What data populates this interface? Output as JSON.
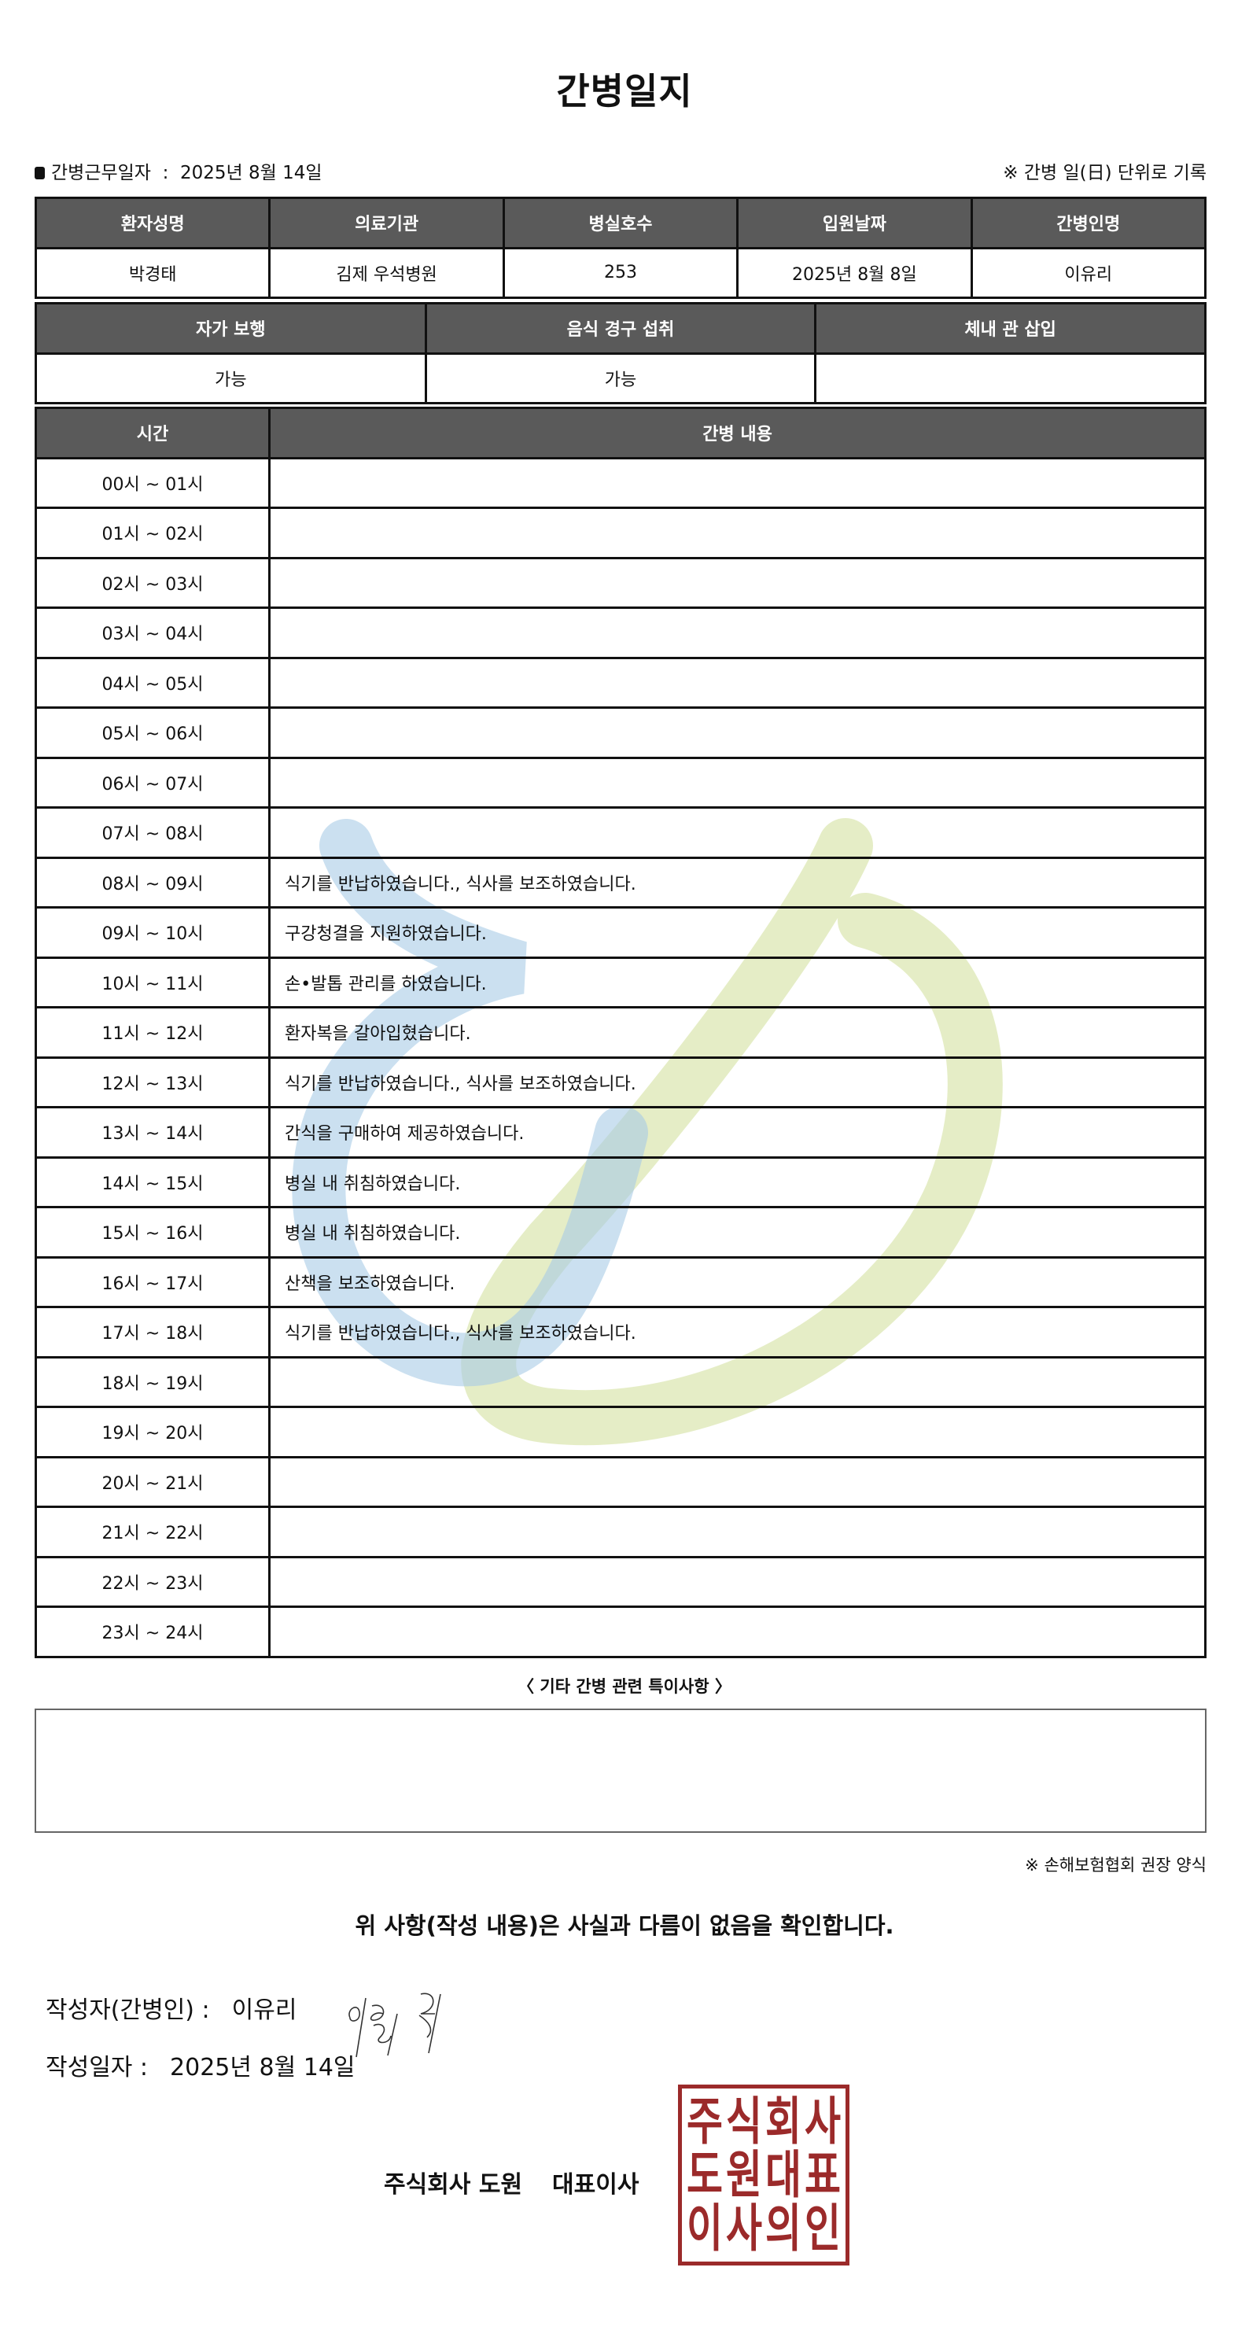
{
  "title": "간병일지",
  "work_date_label": "간병근무일자",
  "work_date": "2025년 8월 14일",
  "record_note": "※ 간병 일(日) 단위로 기록",
  "patient_table": {
    "headers": [
      "환자성명",
      "의료기관",
      "병실호수",
      "입원날짜",
      "간병인명"
    ],
    "values": [
      "박경태",
      "김제 우석병원",
      "253",
      "2025년 8월 8일",
      "이유리"
    ]
  },
  "status_table": {
    "headers": [
      "자가 보행",
      "음식 경구 섭취",
      "체내 관 삽입"
    ],
    "values": [
      "가능",
      "가능",
      ""
    ]
  },
  "log_table": {
    "headers": [
      "시간",
      "간병 내용"
    ],
    "rows": [
      {
        "time": "00시 ~ 01시",
        "content": ""
      },
      {
        "time": "01시 ~ 02시",
        "content": ""
      },
      {
        "time": "02시 ~ 03시",
        "content": ""
      },
      {
        "time": "03시 ~ 04시",
        "content": ""
      },
      {
        "time": "04시 ~ 05시",
        "content": ""
      },
      {
        "time": "05시 ~ 06시",
        "content": ""
      },
      {
        "time": "06시 ~ 07시",
        "content": ""
      },
      {
        "time": "07시 ~ 08시",
        "content": ""
      },
      {
        "time": "08시 ~ 09시",
        "content": "식기를 반납하였습니다., 식사를 보조하였습니다."
      },
      {
        "time": "09시 ~ 10시",
        "content": "구강청결을 지원하였습니다."
      },
      {
        "time": "10시 ~ 11시",
        "content": "손•발톱 관리를 하였습니다."
      },
      {
        "time": "11시 ~ 12시",
        "content": "환자복을 갈아입혔습니다."
      },
      {
        "time": "12시 ~ 13시",
        "content": "식기를 반납하였습니다., 식사를 보조하였습니다."
      },
      {
        "time": "13시 ~ 14시",
        "content": "간식을 구매하여 제공하였습니다."
      },
      {
        "time": "14시 ~ 15시",
        "content": "병실 내 취침하였습니다."
      },
      {
        "time": "15시 ~ 16시",
        "content": "병실 내 취침하였습니다."
      },
      {
        "time": "16시 ~ 17시",
        "content": "산책을 보조하였습니다."
      },
      {
        "time": "17시 ~ 18시",
        "content": "식기를 반납하였습니다., 식사를 보조하였습니다."
      },
      {
        "time": "18시 ~ 19시",
        "content": ""
      },
      {
        "time": "19시 ~ 20시",
        "content": ""
      },
      {
        "time": "20시 ~ 21시",
        "content": ""
      },
      {
        "time": "21시 ~ 22시",
        "content": ""
      },
      {
        "time": "22시 ~ 23시",
        "content": ""
      },
      {
        "time": "23시 ~ 24시",
        "content": ""
      }
    ]
  },
  "notes_label": "〈 기타 간병 관련 특이사항 〉",
  "notes_value": "",
  "form_note": "※ 손해보험협회 권장 양식",
  "confirm_text": "위 사항(작성 내용)은 사실과 다름이 없음을 확인합니다.",
  "writer_label": "작성자(간병인) :",
  "writer_name": "이유리",
  "write_date_label": "작성일자 :",
  "write_date": "2025년 8월 14일",
  "company_name": "주식회사 도원",
  "ceo_title": "대표이사",
  "seal_text": [
    "주",
    "식",
    "회",
    "사",
    "도",
    "원",
    "대",
    "표",
    "이",
    "사",
    "의",
    "인"
  ],
  "colors": {
    "header_bg": "#5a5a5a",
    "seal": "#9b2a2a",
    "watermark_blue": "#a9cbe6",
    "watermark_green": "#dfe9b8"
  }
}
